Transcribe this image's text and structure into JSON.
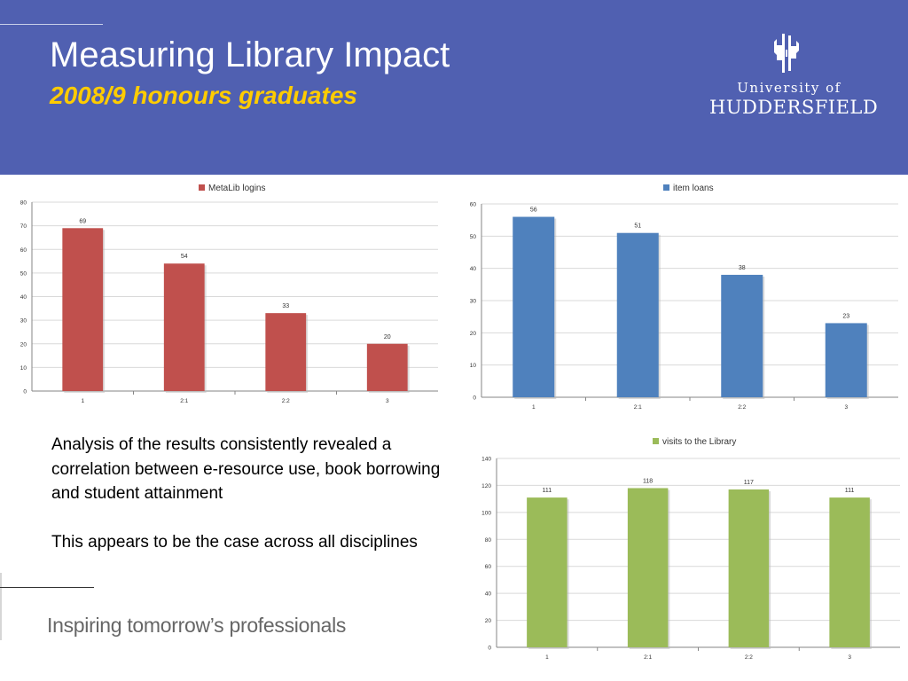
{
  "header": {
    "title": "Measuring Library Impact",
    "subtitle": "2008/9 honours graduates",
    "background_color": "#5060b1",
    "subtitle_color": "#ffcc00"
  },
  "logo": {
    "line1": "University of",
    "line2": "HUDDERSFIELD",
    "mark_icon": "university-emblem-icon"
  },
  "body": {
    "paragraphs": [
      "Analysis of the results consistently revealed a correlation between e-resource use, book borrowing and student attainment",
      "This appears to be the case across all disciplines"
    ]
  },
  "footer": {
    "tagline": "Inspiring tomorrow’s professionals"
  },
  "chart_data": [
    {
      "type": "bar",
      "categories": [
        "1",
        "2:1",
        "2:2",
        "3"
      ],
      "series": [
        {
          "name": "MetaLib logins",
          "values": [
            69,
            54,
            33,
            20
          ],
          "color": "#c0504d"
        }
      ],
      "title": "",
      "xlabel": "",
      "ylabel": "",
      "ylim": [
        0,
        80
      ],
      "ytick_step": 10,
      "grid": true,
      "legend": "top-center",
      "data_labels": true
    },
    {
      "type": "bar",
      "categories": [
        "1",
        "2:1",
        "2:2",
        "3"
      ],
      "series": [
        {
          "name": "item loans",
          "values": [
            56,
            51,
            38,
            23
          ],
          "color": "#4f81bd"
        }
      ],
      "title": "",
      "xlabel": "",
      "ylabel": "",
      "ylim": [
        0,
        60
      ],
      "ytick_step": 10,
      "grid": true,
      "legend": "top-center",
      "data_labels": true
    },
    {
      "type": "bar",
      "categories": [
        "1",
        "2:1",
        "2:2",
        "3"
      ],
      "series": [
        {
          "name": "visits to the Library",
          "values": [
            111,
            118,
            117,
            111
          ],
          "color": "#9bbb59"
        }
      ],
      "title": "",
      "xlabel": "",
      "ylabel": "",
      "ylim": [
        0,
        140
      ],
      "ytick_step": 20,
      "grid": true,
      "legend": "top-center",
      "data_labels": true
    }
  ]
}
